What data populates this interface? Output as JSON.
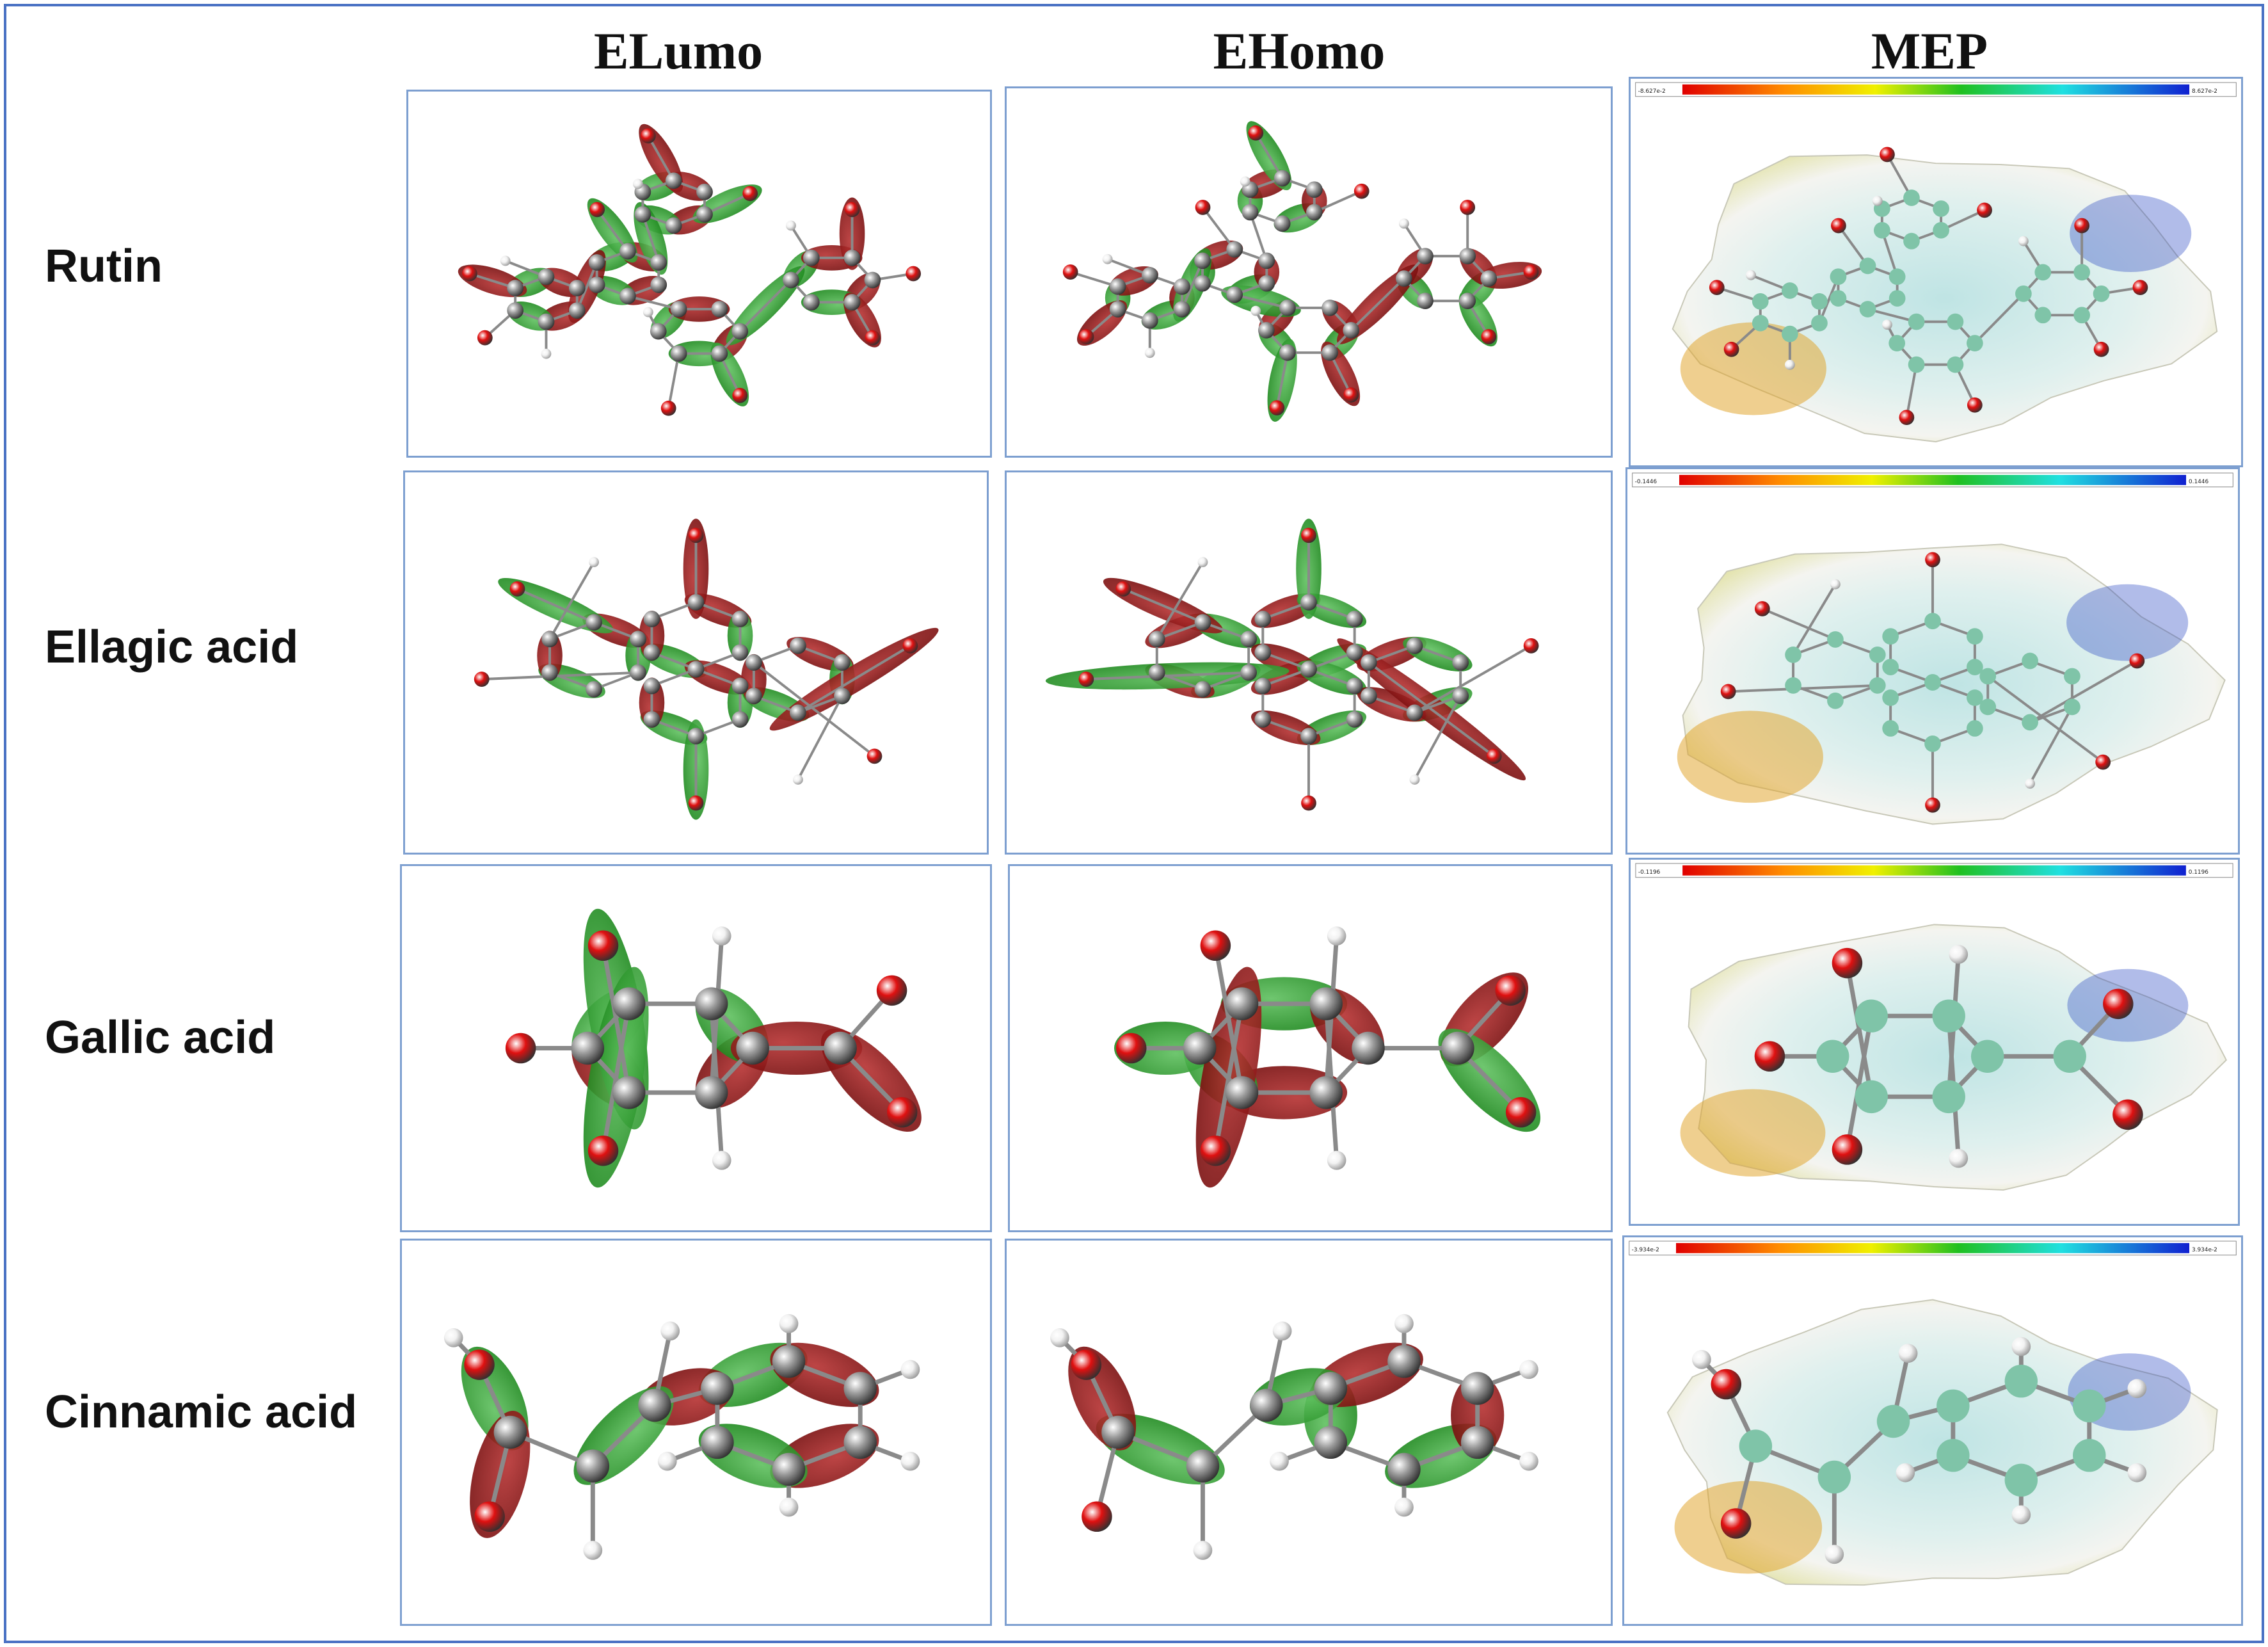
{
  "columns": [
    "ELumo",
    "EHomo",
    "MEP"
  ],
  "rows": [
    {
      "label": "Rutin",
      "mep_range": [
        "-8.627e-2",
        "8.627e-2"
      ]
    },
    {
      "label": "Ellagic acid",
      "mep_range": [
        "-0.1446",
        "0.1446"
      ]
    },
    {
      "label": "Gallic acid",
      "mep_range": [
        "-0.1196",
        "0.1196"
      ]
    },
    {
      "label": "Cinnamic acid",
      "mep_range": [
        "-3.934e-2",
        "3.934e-2"
      ]
    }
  ],
  "colors": {
    "frame": "#4a72c4",
    "panel_border": "#7d9fd0",
    "orbital_positive": "#1f8a1f",
    "orbital_negative": "#7a0f0f",
    "atom_carbon": "#9a9a9a",
    "atom_oxygen": "#e01010",
    "atom_hydrogen": "#f2f2f2"
  }
}
